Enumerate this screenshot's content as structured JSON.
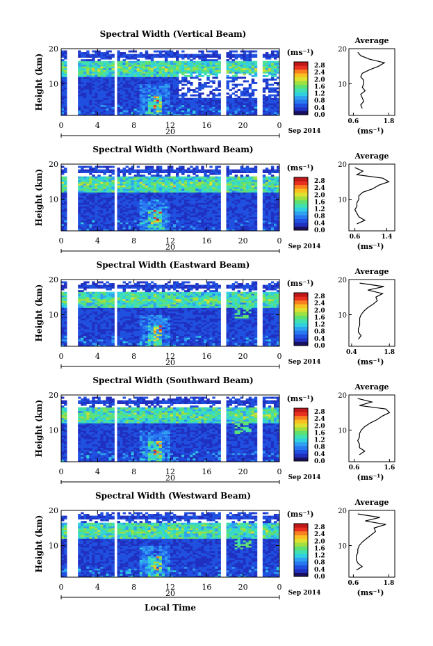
{
  "figure": {
    "xlabel": "Local Time",
    "date_label": "Sep 2014",
    "day_label": "20",
    "x_ticks": [
      "0",
      "4",
      "8",
      "12",
      "16",
      "20",
      "0"
    ],
    "ylabel": "Height (km)",
    "y_ticks": [
      "20",
      "10"
    ],
    "colorbar_unit": "(ms⁻¹)",
    "avg_title": "Average",
    "avg_unit": "(ms⁻¹)",
    "colors": {
      "colormap": [
        "#1a1060",
        "#2030c0",
        "#2050e0",
        "#2878f0",
        "#30a0f0",
        "#30d0e0",
        "#40e0b0",
        "#60e070",
        "#a0e040",
        "#e0e030",
        "#f8c020",
        "#f88020",
        "#e83020",
        "#c01818"
      ],
      "gap_color": "#ffffff"
    }
  },
  "chart_data": [
    {
      "type": "heatmap",
      "title": "Spectral Width (Vertical Beam)",
      "x": "Local Time (hours)",
      "xlim": [
        0,
        24
      ],
      "y": "Height (km)",
      "ylim": [
        1,
        20
      ],
      "colorbar_ticks": [
        "2.8",
        "2.4",
        "2.0",
        "1.6",
        "1.2",
        "0.8",
        "0.4",
        "0.0"
      ],
      "colorbar_range": [
        0.0,
        3.0
      ],
      "avg": {
        "type": "line",
        "xticks": [
          "0.6",
          "1.8"
        ],
        "xlim": [
          0.45,
          2.0
        ],
        "ylim": [
          1,
          20
        ],
        "heights_km": [
          3,
          4,
          5,
          6,
          7,
          8,
          9,
          10,
          11,
          12,
          13,
          14,
          15,
          16,
          17,
          18,
          19
        ],
        "values_ms": [
          0.9,
          0.85,
          0.95,
          0.9,
          0.85,
          1.0,
          0.9,
          0.95,
          0.95,
          0.85,
          0.9,
          1.15,
          1.45,
          1.65,
          1.15,
          0.85,
          0.75
        ]
      }
    },
    {
      "type": "heatmap",
      "title": "Spectral Width (Northward Beam)",
      "x": "Local Time (hours)",
      "xlim": [
        0,
        24
      ],
      "y": "Height (km)",
      "ylim": [
        1,
        20
      ],
      "colorbar_ticks": [
        "2.8",
        "2.4",
        "2.0",
        "1.6",
        "1.2",
        "0.8",
        "0.4",
        "0.0"
      ],
      "colorbar_range": [
        0.0,
        3.0
      ],
      "avg": {
        "type": "line",
        "xticks": [
          "0.6",
          "1.4"
        ],
        "xlim": [
          0.45,
          1.6
        ],
        "ylim": [
          1,
          20
        ],
        "heights_km": [
          3,
          4,
          5,
          6,
          7,
          8,
          9,
          10,
          11,
          12,
          13,
          14,
          15,
          16,
          17,
          18,
          19
        ],
        "values_ms": [
          0.65,
          0.85,
          0.7,
          0.65,
          0.6,
          0.65,
          0.65,
          0.7,
          0.7,
          0.8,
          1.05,
          1.2,
          1.45,
          1.3,
          0.65,
          0.8,
          0.6
        ]
      }
    },
    {
      "type": "heatmap",
      "title": "Spectral Width (Eastward Beam)",
      "x": "Local Time (hours)",
      "xlim": [
        0,
        24
      ],
      "y": "Height (km)",
      "ylim": [
        1,
        20
      ],
      "colorbar_ticks": [
        "2.8",
        "2.4",
        "2.0",
        "1.6",
        "1.2",
        "0.8",
        "0.4",
        "0.0"
      ],
      "colorbar_range": [
        0.0,
        3.0
      ],
      "avg": {
        "type": "line",
        "xticks": [
          "0.4",
          "1.8"
        ],
        "xlim": [
          0.3,
          2.0
        ],
        "ylim": [
          1,
          20
        ],
        "heights_km": [
          3,
          4,
          5,
          6,
          7,
          8,
          9,
          10,
          11,
          12,
          13,
          14,
          15,
          16,
          17,
          18,
          19
        ],
        "values_ms": [
          0.65,
          0.75,
          0.65,
          0.65,
          0.7,
          0.7,
          0.7,
          0.75,
          0.85,
          1.0,
          1.2,
          1.35,
          1.3,
          1.55,
          1.0,
          1.6,
          0.7
        ]
      }
    },
    {
      "type": "heatmap",
      "title": "Spectral Width (Southward Beam)",
      "x": "Local Time (hours)",
      "xlim": [
        0,
        24
      ],
      "y": "Height (km)",
      "ylim": [
        1,
        20
      ],
      "colorbar_ticks": [
        "2.8",
        "2.4",
        "2.0",
        "1.6",
        "1.2",
        "0.8",
        "0.4",
        "0.0"
      ],
      "colorbar_range": [
        0.0,
        3.0
      ],
      "avg": {
        "type": "line",
        "xticks": [
          "0.6",
          "1.6"
        ],
        "xlim": [
          0.45,
          1.75
        ],
        "ylim": [
          1,
          20
        ],
        "heights_km": [
          3,
          4,
          5,
          6,
          7,
          8,
          9,
          10,
          11,
          12,
          13,
          14,
          15,
          16,
          17,
          18,
          19
        ],
        "values_ms": [
          0.75,
          0.9,
          0.75,
          0.75,
          0.7,
          0.75,
          0.75,
          0.8,
          0.9,
          1.05,
          1.25,
          1.4,
          1.6,
          1.5,
          0.75,
          1.1,
          0.7
        ]
      }
    },
    {
      "type": "heatmap",
      "title": "Spectral Width (Westward Beam)",
      "x": "Local Time (hours)",
      "xlim": [
        0,
        24
      ],
      "y": "Height (km)",
      "ylim": [
        1,
        20
      ],
      "colorbar_ticks": [
        "2.8",
        "2.4",
        "2.0",
        "1.6",
        "1.2",
        "0.8",
        "0.4",
        "0.0"
      ],
      "colorbar_range": [
        0.0,
        3.0
      ],
      "avg": {
        "type": "line",
        "xticks": [
          "0.6",
          "1.8"
        ],
        "xlim": [
          0.45,
          2.0
        ],
        "ylim": [
          1,
          20
        ],
        "heights_km": [
          3,
          4,
          5,
          6,
          7,
          8,
          9,
          10,
          11,
          12,
          13,
          14,
          15,
          16,
          17,
          18,
          19
        ],
        "values_ms": [
          0.7,
          0.9,
          0.75,
          0.7,
          0.7,
          0.75,
          0.75,
          0.8,
          0.9,
          1.05,
          1.2,
          1.35,
          1.3,
          1.7,
          1.0,
          1.5,
          0.75
        ]
      }
    }
  ]
}
